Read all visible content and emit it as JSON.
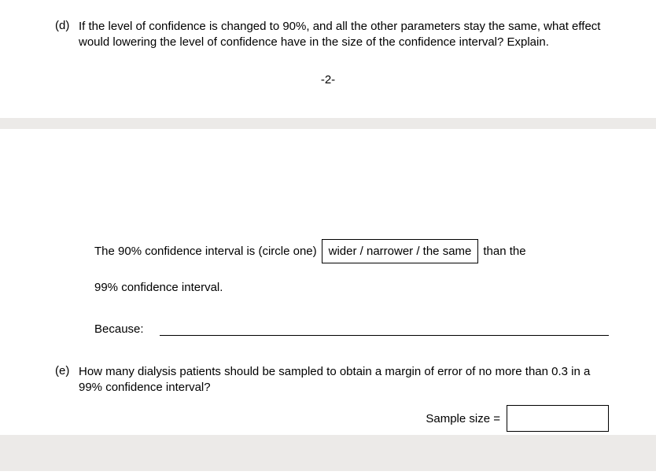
{
  "question_d": {
    "label": "(d)",
    "text": "If the level of confidence is changed to 90%, and all the other parameters stay the same, what effect would lowering the level of confidence have in the size of the confidence interval? Explain."
  },
  "page_marker": "-2-",
  "ci_sentence": {
    "part1": "The 90% confidence interval is (circle one)",
    "choices": "wider / narrower / the same",
    "part2": "than the",
    "part3": "99% confidence interval."
  },
  "because_label": "Because:",
  "question_e": {
    "label": "(e)",
    "text": "How many dialysis patients should be sampled to obtain a margin of error of no more than 0.3 in a 99% confidence interval?"
  },
  "sample_size_label": "Sample size ="
}
